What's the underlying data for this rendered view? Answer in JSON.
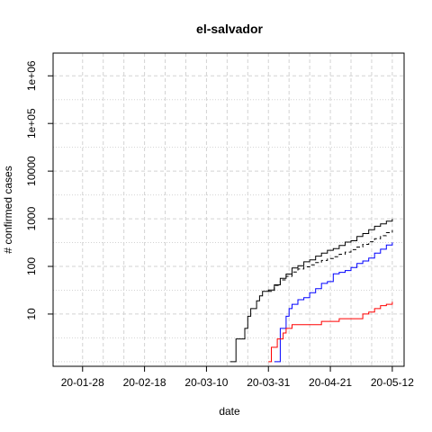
{
  "chart_data": {
    "type": "line",
    "title": "el-salvador",
    "xlabel": "date",
    "ylabel": "# confirmed cases",
    "scale_y": "log10",
    "grid": true,
    "x_ticks": [
      "20-01-28",
      "20-02-18",
      "20-03-10",
      "20-03-31",
      "20-04-21",
      "20-05-12"
    ],
    "y_ticks": [
      "10",
      "100",
      "1000",
      "10000",
      "1e+05",
      "1e+06"
    ],
    "xlim": [
      "2020-01-18",
      "2020-05-16"
    ],
    "ylim": [
      0.8,
      3000000
    ],
    "series": [
      {
        "color": "#000000",
        "line": "solid",
        "points": [
          [
            "2020-03-18",
            1
          ],
          [
            "2020-03-19",
            1
          ],
          [
            "2020-03-20",
            3
          ],
          [
            "2020-03-21",
            3
          ],
          [
            "2020-03-22",
            3
          ],
          [
            "2020-03-23",
            5
          ],
          [
            "2020-03-24",
            9
          ],
          [
            "2020-03-25",
            13
          ],
          [
            "2020-03-26",
            13
          ],
          [
            "2020-03-27",
            19
          ],
          [
            "2020-03-28",
            24
          ],
          [
            "2020-03-29",
            30
          ],
          [
            "2020-03-30",
            30
          ],
          [
            "2020-03-31",
            32
          ],
          [
            "2020-04-02",
            41
          ],
          [
            "2020-04-04",
            56
          ],
          [
            "2020-04-06",
            69
          ],
          [
            "2020-04-08",
            93
          ],
          [
            "2020-04-10",
            103
          ],
          [
            "2020-04-12",
            125
          ],
          [
            "2020-04-14",
            137
          ],
          [
            "2020-04-16",
            164
          ],
          [
            "2020-04-18",
            190
          ],
          [
            "2020-04-20",
            218
          ],
          [
            "2020-04-22",
            237
          ],
          [
            "2020-04-24",
            274
          ],
          [
            "2020-04-26",
            323
          ],
          [
            "2020-04-28",
            345
          ],
          [
            "2020-04-30",
            424
          ],
          [
            "2020-05-02",
            490
          ],
          [
            "2020-05-04",
            587
          ],
          [
            "2020-05-06",
            695
          ],
          [
            "2020-05-08",
            784
          ],
          [
            "2020-05-10",
            889
          ],
          [
            "2020-05-12",
            998
          ]
        ]
      },
      {
        "color": "#000000",
        "line": "dashed",
        "points": [
          [
            "2020-03-31",
            30
          ],
          [
            "2020-04-02",
            40
          ],
          [
            "2020-04-04",
            52
          ],
          [
            "2020-04-06",
            62
          ],
          [
            "2020-04-08",
            76
          ],
          [
            "2020-04-10",
            88
          ],
          [
            "2020-04-12",
            98
          ],
          [
            "2020-04-14",
            108
          ],
          [
            "2020-04-16",
            120
          ],
          [
            "2020-04-18",
            133
          ],
          [
            "2020-04-20",
            146
          ],
          [
            "2020-04-22",
            160
          ],
          [
            "2020-04-24",
            180
          ],
          [
            "2020-04-26",
            200
          ],
          [
            "2020-04-28",
            225
          ],
          [
            "2020-04-30",
            255
          ],
          [
            "2020-05-02",
            290
          ],
          [
            "2020-05-04",
            330
          ],
          [
            "2020-05-06",
            380
          ],
          [
            "2020-05-08",
            440
          ],
          [
            "2020-05-10",
            510
          ],
          [
            "2020-05-12",
            580
          ]
        ]
      },
      {
        "color": "#0000ff",
        "line": "solid",
        "points": [
          [
            "2020-04-02",
            1
          ],
          [
            "2020-04-03",
            1
          ],
          [
            "2020-04-04",
            5
          ],
          [
            "2020-04-05",
            5
          ],
          [
            "2020-04-06",
            9
          ],
          [
            "2020-04-07",
            13
          ],
          [
            "2020-04-08",
            16
          ],
          [
            "2020-04-10",
            20
          ],
          [
            "2020-04-12",
            22
          ],
          [
            "2020-04-14",
            28
          ],
          [
            "2020-04-16",
            34
          ],
          [
            "2020-04-18",
            44
          ],
          [
            "2020-04-20",
            48
          ],
          [
            "2020-04-22",
            70
          ],
          [
            "2020-04-24",
            75
          ],
          [
            "2020-04-26",
            82
          ],
          [
            "2020-04-28",
            95
          ],
          [
            "2020-04-30",
            115
          ],
          [
            "2020-05-02",
            130
          ],
          [
            "2020-05-04",
            150
          ],
          [
            "2020-05-06",
            190
          ],
          [
            "2020-05-08",
            230
          ],
          [
            "2020-05-10",
            280
          ],
          [
            "2020-05-12",
            320
          ]
        ]
      },
      {
        "color": "#ff0000",
        "line": "solid",
        "points": [
          [
            "2020-03-31",
            1
          ],
          [
            "2020-04-01",
            2
          ],
          [
            "2020-04-02",
            2
          ],
          [
            "2020-04-03",
            3
          ],
          [
            "2020-04-04",
            3
          ],
          [
            "2020-04-05",
            4
          ],
          [
            "2020-04-06",
            5
          ],
          [
            "2020-04-08",
            6
          ],
          [
            "2020-04-10",
            6
          ],
          [
            "2020-04-12",
            6
          ],
          [
            "2020-04-14",
            6
          ],
          [
            "2020-04-16",
            6
          ],
          [
            "2020-04-18",
            7
          ],
          [
            "2020-04-20",
            7
          ],
          [
            "2020-04-22",
            7
          ],
          [
            "2020-04-24",
            8
          ],
          [
            "2020-04-26",
            8
          ],
          [
            "2020-04-28",
            8
          ],
          [
            "2020-04-30",
            8
          ],
          [
            "2020-05-02",
            10
          ],
          [
            "2020-05-04",
            11
          ],
          [
            "2020-05-06",
            13
          ],
          [
            "2020-05-08",
            15
          ],
          [
            "2020-05-10",
            16
          ],
          [
            "2020-05-12",
            18
          ]
        ]
      }
    ]
  }
}
